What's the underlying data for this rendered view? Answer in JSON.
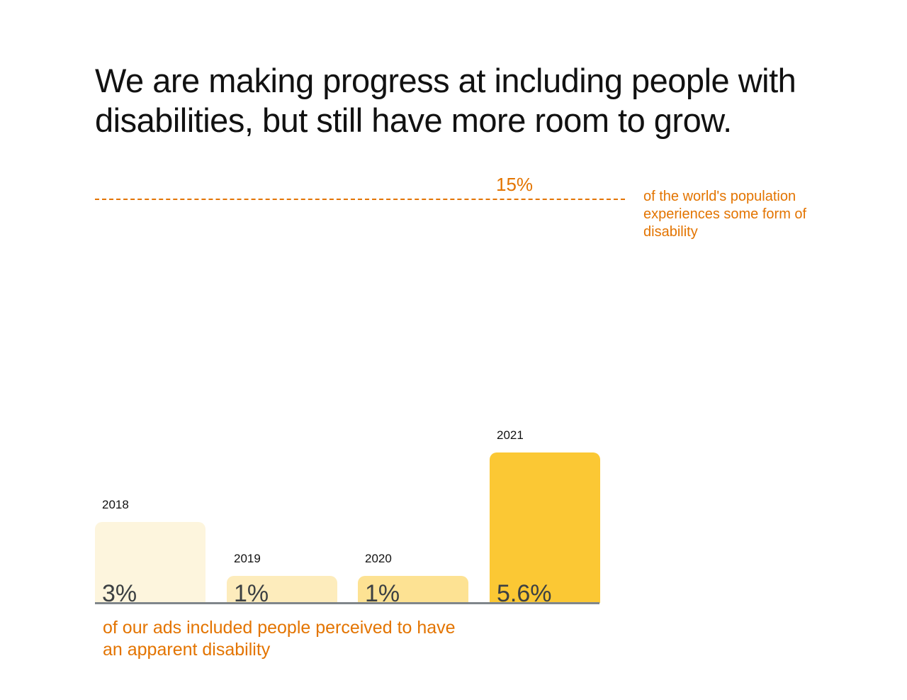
{
  "chart_data": {
    "type": "bar",
    "title": "We are making progress at including people with disabilities, but still have more room to grow.",
    "categories": [
      "2018",
      "2019",
      "2020",
      "2021"
    ],
    "values": [
      3,
      1,
      1,
      5.6
    ],
    "value_labels": [
      "3%",
      "1%",
      "1%",
      "5.6%"
    ],
    "colors": [
      "#fdf5dd",
      "#fdecbc",
      "#fde293",
      "#fbc834"
    ],
    "unit": "%",
    "caption": "of our ads included people perceived to have an apparent disability",
    "reference_line": {
      "value": 15,
      "label": "15%",
      "description": "of the world's population experiences some form of disability",
      "color": "#e37400"
    },
    "ylim": [
      0,
      15
    ],
    "grid": false
  }
}
